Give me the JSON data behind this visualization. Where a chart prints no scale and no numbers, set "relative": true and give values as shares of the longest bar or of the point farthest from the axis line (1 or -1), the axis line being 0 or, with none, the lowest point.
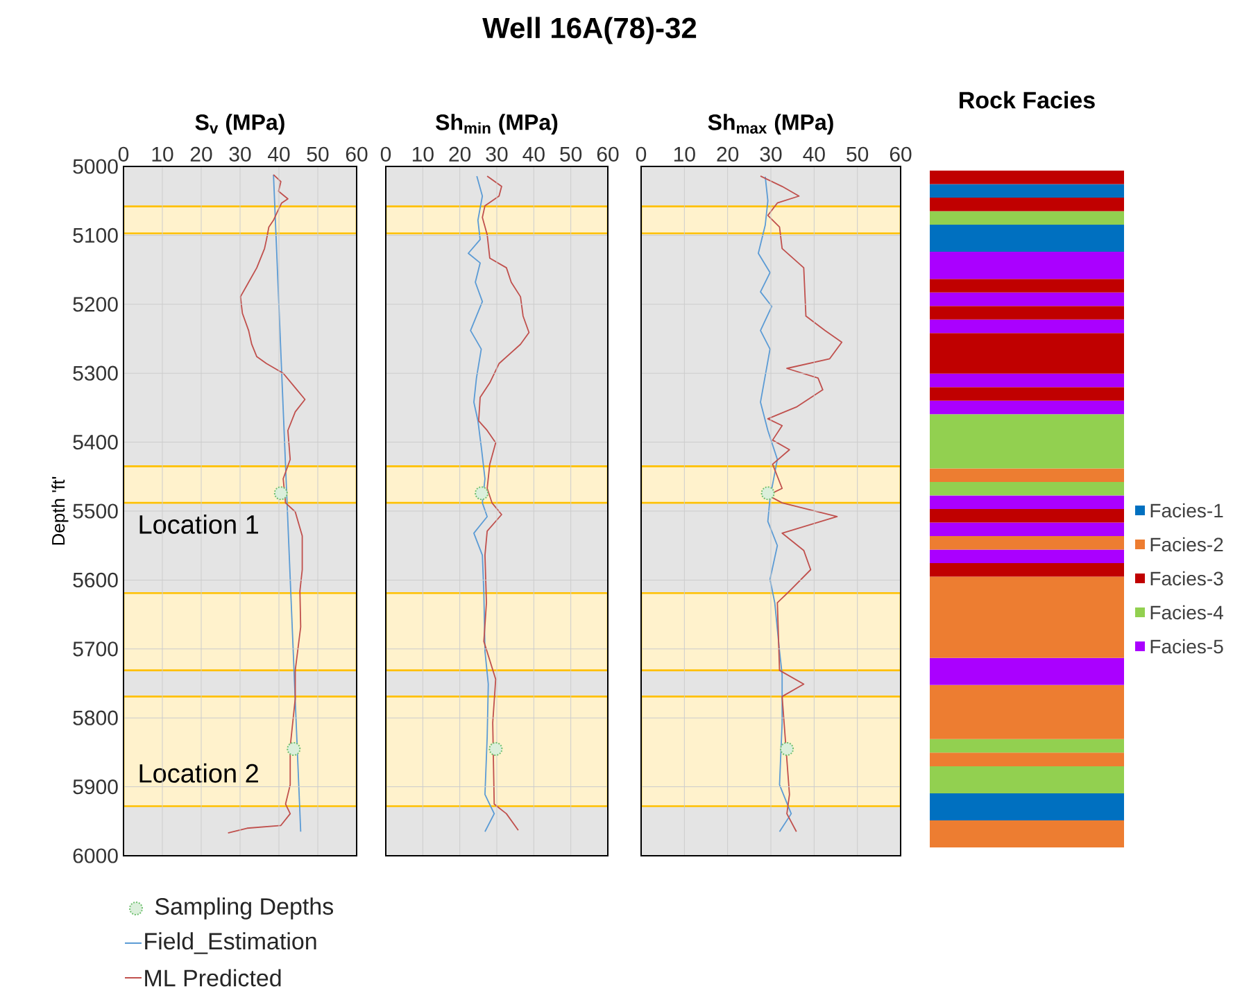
{
  "chart_data": [
    {
      "type": "line",
      "xlabel": "S$_{v}$ (MPa)",
      "ylabel": "Depth 'ft'",
      "xlim": [
        0,
        60
      ],
      "xticks": [
        0,
        10,
        20,
        30,
        40,
        50,
        60
      ],
      "ylim": [
        6000,
        5000
      ],
      "yticks": [
        5000,
        5100,
        5200,
        5300,
        5400,
        5500,
        5600,
        5700,
        5800,
        5900,
        6000
      ],
      "grid": true,
      "legend": "bottom",
      "bands": [
        {
          "axis": "y",
          "from": 5058,
          "to": 5097,
          "color": "#fff2cc"
        },
        {
          "axis": "y",
          "from": 5435,
          "to": 5488,
          "color": "#fff2cc"
        },
        {
          "axis": "y",
          "from": 5619,
          "to": 5731,
          "color": "#fff2cc"
        },
        {
          "axis": "y",
          "from": 5769,
          "to": 5928,
          "color": "#fff2cc"
        }
      ],
      "annotations": [
        "Location 1",
        "Location 2"
      ],
      "series": [
        {
          "name": "Sampling Depths",
          "type": "scatter",
          "marker": "circle",
          "color": "#70c070",
          "x": [
            40.5,
            43.8
          ],
          "values": [
            5474,
            5845
          ]
        },
        {
          "name": "Field_Estimation",
          "color": "#5b9bd5",
          "x": [
            38.6,
            45.6
          ],
          "values": [
            5012,
            5965
          ]
        },
        {
          "name": "ML Predicted",
          "color": "#c0504d",
          "x": [
            38.6,
            40.5,
            39.9,
            42.3,
            40.7,
            39.5,
            38.6,
            37.4,
            36.8,
            36.3,
            34.3,
            31.8,
            30.1,
            30.6,
            32.2,
            33.0,
            34.3,
            36.8,
            41.1,
            44.2,
            46.7,
            44.2,
            42.3,
            42.9,
            41.1,
            41.7,
            44.2,
            46.0,
            46.0,
            45.4,
            45.6,
            44.2,
            44.2,
            42.9,
            42.9,
            41.7,
            42.9,
            40.5,
            31.8,
            26.9
          ],
          "values": [
            5012,
            5022,
            5036,
            5047,
            5053,
            5067,
            5078,
            5088,
            5106,
            5119,
            5147,
            5172,
            5189,
            5213,
            5238,
            5258,
            5276,
            5286,
            5300,
            5321,
            5338,
            5356,
            5383,
            5425,
            5453,
            5488,
            5501,
            5536,
            5585,
            5616,
            5668,
            5731,
            5772,
            5842,
            5897,
            5925,
            5939,
            5956,
            5960,
            5967
          ]
        }
      ]
    },
    {
      "type": "line",
      "title": "Well 16A(78)-32",
      "xlabel": "Sh$_{min}$ (MPa)",
      "xlim": [
        0,
        60
      ],
      "xticks": [
        0,
        10,
        20,
        30,
        40,
        50,
        60
      ],
      "ylim": [
        6000,
        5000
      ],
      "yticks": [
        5000,
        5100,
        5200,
        5300,
        5400,
        5500,
        5600,
        5700,
        5800,
        5900,
        6000
      ],
      "grid": true,
      "tick_labels": "x",
      "bands": [
        {
          "axis": "y",
          "from": 5058,
          "to": 5097,
          "color": "#fff2cc"
        },
        {
          "axis": "y",
          "from": 5435,
          "to": 5488,
          "color": "#fff2cc"
        },
        {
          "axis": "y",
          "from": 5619,
          "to": 5731,
          "color": "#fff2cc"
        },
        {
          "axis": "y",
          "from": 5769,
          "to": 5928,
          "color": "#fff2cc"
        }
      ],
      "series": [
        {
          "type": "scatter",
          "marker": "circle",
          "color": "#70c070",
          "x": [
            25.9,
            29.7
          ],
          "values": [
            5474,
            5845
          ]
        },
        {
          "color": "#5b9bd5",
          "x": [
            24.6,
            26.1,
            24.9,
            25.5,
            22.3,
            25.5,
            24.2,
            26.1,
            22.9,
            25.8,
            24.5,
            23.8,
            24.9,
            25.9,
            26.8,
            26.1,
            27.4,
            23.8,
            26.1,
            26.5,
            26.8,
            27.7,
            27.4,
            26.8,
            29.3,
            26.8
          ],
          "values": [
            5014,
            5043,
            5078,
            5106,
            5126,
            5140,
            5168,
            5196,
            5238,
            5265,
            5307,
            5342,
            5369,
            5411,
            5453,
            5488,
            5508,
            5532,
            5564,
            5619,
            5703,
            5751,
            5828,
            5911,
            5939,
            5965
          ]
        },
        {
          "color": "#c0504d",
          "x": [
            27.4,
            31.3,
            30.6,
            26.8,
            26.1,
            27.4,
            28.1,
            32.6,
            33.9,
            36.4,
            37.1,
            38.7,
            36.4,
            30.6,
            28.1,
            25.5,
            25.1,
            27.4,
            29.7,
            28.1,
            27.4,
            28.7,
            31.3,
            27.4,
            26.8,
            27.2,
            26.5,
            29.7,
            28.9,
            29.3,
            32.6,
            35.8
          ],
          "values": [
            5014,
            5029,
            5043,
            5057,
            5074,
            5099,
            5133,
            5147,
            5168,
            5189,
            5217,
            5241,
            5258,
            5286,
            5314,
            5335,
            5369,
            5383,
            5401,
            5432,
            5467,
            5488,
            5505,
            5529,
            5564,
            5633,
            5689,
            5744,
            5807,
            5925,
            5939,
            5963
          ]
        }
      ]
    },
    {
      "type": "line",
      "xlabel": "Sh$_{max}$ (MPa)",
      "xlim": [
        0,
        60
      ],
      "xticks": [
        0,
        10,
        20,
        30,
        40,
        50,
        60
      ],
      "ylim": [
        6000,
        5000
      ],
      "yticks": [
        5000,
        5100,
        5200,
        5300,
        5400,
        5500,
        5600,
        5700,
        5800,
        5900,
        6000
      ],
      "grid": true,
      "tick_labels": "x",
      "bands": [
        {
          "axis": "y",
          "from": 5058,
          "to": 5097,
          "color": "#fff2cc"
        },
        {
          "axis": "y",
          "from": 5435,
          "to": 5488,
          "color": "#fff2cc"
        },
        {
          "axis": "y",
          "from": 5619,
          "to": 5731,
          "color": "#fff2cc"
        },
        {
          "axis": "y",
          "from": 5769,
          "to": 5928,
          "color": "#fff2cc"
        }
      ],
      "series": [
        {
          "type": "scatter",
          "marker": "circle",
          "color": "#70c070",
          "x": [
            29.3,
            33.7
          ],
          "values": [
            5474,
            5845
          ]
        },
        {
          "color": "#5b9bd5",
          "x": [
            28.7,
            29.3,
            28.7,
            27.1,
            29.8,
            27.6,
            30.2,
            27.6,
            29.8,
            27.6,
            29.3,
            31.5,
            29.8,
            29.3,
            31.5,
            29.8,
            30.9,
            32.0,
            32.6,
            32.6,
            32.0,
            34.7,
            32.0
          ],
          "values": [
            5015,
            5050,
            5085,
            5126,
            5154,
            5182,
            5203,
            5238,
            5265,
            5342,
            5383,
            5425,
            5481,
            5515,
            5550,
            5599,
            5633,
            5703,
            5737,
            5807,
            5897,
            5939,
            5965
          ]
        },
        {
          "color": "#c0504d",
          "x": [
            27.6,
            32.6,
            36.5,
            31.5,
            29.3,
            32.0,
            32.6,
            37.6,
            38.1,
            42.5,
            46.4,
            43.6,
            33.7,
            40.9,
            42.0,
            35.9,
            29.3,
            32.6,
            30.4,
            34.3,
            30.4,
            32.6,
            29.3,
            32.6,
            45.3,
            32.6,
            37.6,
            39.2,
            34.3,
            31.5,
            32.0,
            37.6,
            32.6,
            34.3,
            33.7,
            35.9
          ],
          "values": [
            5014,
            5029,
            5043,
            5053,
            5071,
            5088,
            5119,
            5147,
            5217,
            5238,
            5255,
            5279,
            5293,
            5307,
            5324,
            5349,
            5366,
            5376,
            5397,
            5411,
            5432,
            5467,
            5477,
            5488,
            5508,
            5532,
            5557,
            5585,
            5616,
            5633,
            5731,
            5751,
            5769,
            5911,
            5939,
            5965
          ]
        }
      ]
    },
    {
      "type": "bar",
      "stacked": true,
      "relative": true,
      "title": "Rock Facies",
      "legend": "right",
      "categories": [
        null
      ],
      "series": [
        {
          "color": "#ed7d31",
          "values": [
            0.04
          ]
        },
        {
          "name": "Facies-1",
          "color": "#0070c0",
          "values": [
            0.04
          ]
        },
        {
          "color": "#92d050",
          "values": [
            0.04
          ]
        },
        {
          "name": "Facies-2",
          "color": "#ed7d31",
          "values": [
            0.02
          ]
        },
        {
          "color": "#92d050",
          "values": [
            0.02
          ]
        },
        {
          "color": "#ed7d31",
          "values": [
            0.08
          ]
        },
        {
          "color": "#aa00ff",
          "values": [
            0.04
          ]
        },
        {
          "color": "#ed7d31",
          "values": [
            0.12
          ]
        },
        {
          "name": "Facies-3",
          "color": "#c00000",
          "values": [
            0.02
          ]
        },
        {
          "color": "#aa00ff",
          "values": [
            0.02
          ]
        },
        {
          "color": "#ed7d31",
          "values": [
            0.02
          ]
        },
        {
          "color": "#aa00ff",
          "values": [
            0.02
          ]
        },
        {
          "color": "#c00000",
          "values": [
            0.02
          ]
        },
        {
          "color": "#aa00ff",
          "values": [
            0.02
          ]
        },
        {
          "name": "Facies-4",
          "color": "#92d050",
          "values": [
            0.02
          ]
        },
        {
          "color": "#ed7d31",
          "values": [
            0.02
          ]
        },
        {
          "color": "#92d050",
          "values": [
            0.08
          ]
        },
        {
          "name": "Facies-5",
          "color": "#aa00ff",
          "values": [
            0.02
          ]
        },
        {
          "color": "#c00000",
          "values": [
            0.02
          ]
        },
        {
          "color": "#aa00ff",
          "values": [
            0.02
          ]
        },
        {
          "color": "#c00000",
          "values": [
            0.06
          ]
        },
        {
          "color": "#aa00ff",
          "values": [
            0.02
          ]
        },
        {
          "color": "#c00000",
          "values": [
            0.02
          ]
        },
        {
          "color": "#aa00ff",
          "values": [
            0.02
          ]
        },
        {
          "color": "#c00000",
          "values": [
            0.02
          ]
        },
        {
          "color": "#aa00ff",
          "values": [
            0.04
          ]
        },
        {
          "color": "#0070c0",
          "values": [
            0.04
          ]
        },
        {
          "color": "#92d050",
          "values": [
            0.02
          ]
        },
        {
          "color": "#c00000",
          "values": [
            0.02
          ]
        },
        {
          "color": "#0070c0",
          "values": [
            0.02
          ]
        },
        {
          "color": "#c00000",
          "values": [
            0.02
          ]
        }
      ]
    }
  ]
}
